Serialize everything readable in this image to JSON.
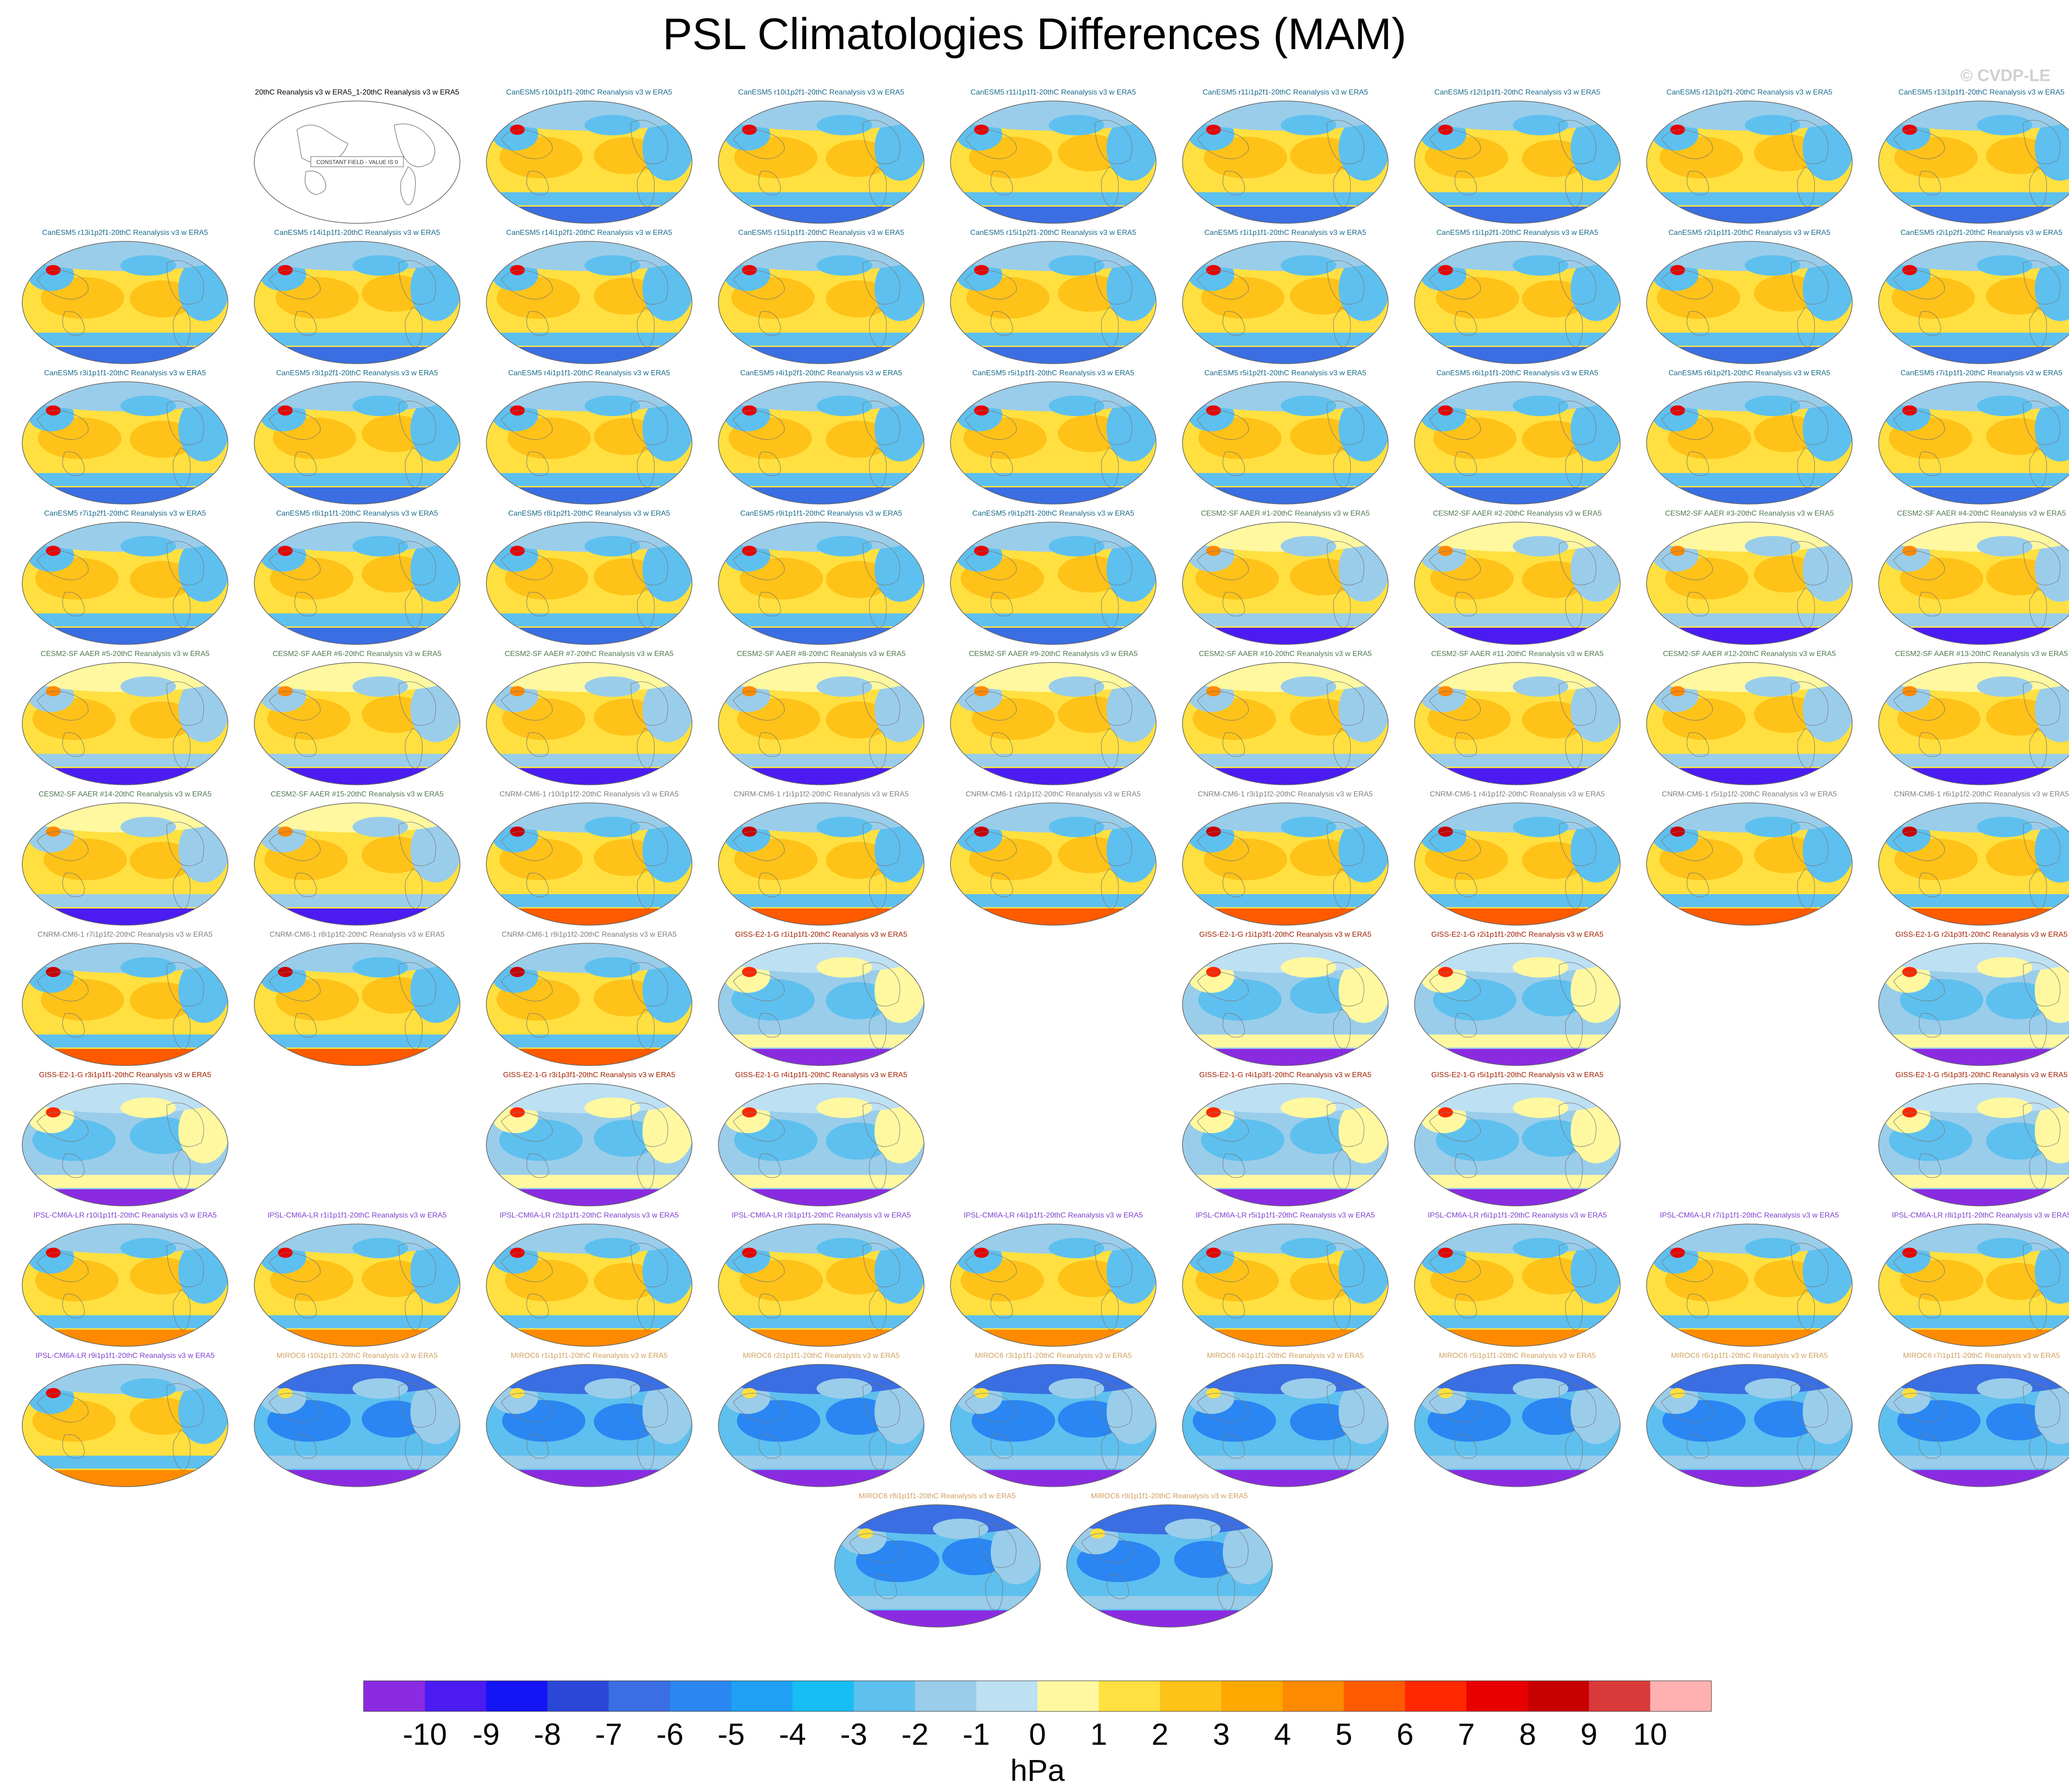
{
  "title": "PSL Climatologies Differences (MAM)",
  "watermark": "© CVDP-LE",
  "colorbar": {
    "units": "hPa",
    "tick_labels": [
      "-10",
      "-9",
      "-8",
      "-7",
      "-6",
      "-5",
      "-4",
      "-3",
      "-2",
      "-1",
      "0",
      "1",
      "2",
      "3",
      "4",
      "5",
      "6",
      "7",
      "8",
      "9",
      "10"
    ],
    "colors": [
      "#8a2be2",
      "#4b1bf2",
      "#1414f5",
      "#2b47d8",
      "#3a6ee2",
      "#2a86f2",
      "#1fa0f5",
      "#17bdf5",
      "#5ec0ef",
      "#9acdea",
      "#bde0f3",
      "#fff8a0",
      "#ffe040",
      "#ffc218",
      "#ffa800",
      "#ff8a00",
      "#ff5a00",
      "#ff2800",
      "#e80000",
      "#c80000",
      "#d83a3a",
      "#ffb0b0"
    ]
  },
  "ensemble_colors": {
    "reference": "#000000",
    "CanESM5": "#1a6b8c",
    "CESM2-SF AAER": "#4f7a4f",
    "CNRM-CM6-1": "#808080",
    "GISS-E2-1-G": "#a02000",
    "IPSL-CM6A-LR": "#8040d0",
    "MIROC6": "#d0a060"
  },
  "map_styles": {
    "reference": {
      "note": "CONSTANT FIELD - VALUE IS 0"
    },
    "CanESM5": {
      "bg": "#ffe040",
      "c1": "#ffc218",
      "c2": "#5ec0ef",
      "c3": "#9acdea",
      "south": "#3a6ee2",
      "hot": "#e80000"
    },
    "CESM2-SF AAER": {
      "bg": "#ffe040",
      "c1": "#ffc218",
      "c2": "#9acdea",
      "c3": "#fff8a0",
      "south": "#4b1bf2",
      "hot": "#ff8a00"
    },
    "CNRM-CM6-1": {
      "bg": "#ffe040",
      "c1": "#ffc218",
      "c2": "#5ec0ef",
      "c3": "#9acdea",
      "south": "#ff5a00",
      "hot": "#c80000"
    },
    "GISS-E2-1-G": {
      "bg": "#9acdea",
      "c1": "#5ec0ef",
      "c2": "#fff8a0",
      "c3": "#bde0f3",
      "south": "#8a2be2",
      "hot": "#ff2800"
    },
    "IPSL-CM6A-LR": {
      "bg": "#ffe040",
      "c1": "#ffc218",
      "c2": "#5ec0ef",
      "c3": "#9acdea",
      "south": "#ff8a00",
      "hot": "#e80000"
    },
    "MIROC6": {
      "bg": "#5ec0ef",
      "c1": "#2a86f2",
      "c2": "#9acdea",
      "c3": "#3a6ee2",
      "south": "#8a2be2",
      "hot": "#ffe040"
    }
  },
  "panels": [
    {
      "row": 0,
      "col": 1,
      "ens": "reference",
      "label": "20thC Reanalysis v3 w ERA5_1-20thC Reanalysis v3 w ERA5"
    },
    {
      "row": 0,
      "col": 2,
      "ens": "CanESM5",
      "label": "CanESM5 r10i1p1f1-20thC Reanalysis v3 w ERA5"
    },
    {
      "row": 0,
      "col": 3,
      "ens": "CanESM5",
      "label": "CanESM5 r10i1p2f1-20thC Reanalysis v3 w ERA5"
    },
    {
      "row": 0,
      "col": 4,
      "ens": "CanESM5",
      "label": "CanESM5 r11i1p1f1-20thC Reanalysis v3 w ERA5"
    },
    {
      "row": 0,
      "col": 5,
      "ens": "CanESM5",
      "label": "CanESM5 r11i1p2f1-20thC Reanalysis v3 w ERA5"
    },
    {
      "row": 0,
      "col": 6,
      "ens": "CanESM5",
      "label": "CanESM5 r12i1p1f1-20thC Reanalysis v3 w ERA5"
    },
    {
      "row": 0,
      "col": 7,
      "ens": "CanESM5",
      "label": "CanESM5 r12i1p2f1-20thC Reanalysis v3 w ERA5"
    },
    {
      "row": 0,
      "col": 8,
      "ens": "CanESM5",
      "label": "CanESM5 r13i1p1f1-20thC Reanalysis v3 w ERA5"
    },
    {
      "row": 1,
      "col": 0,
      "ens": "CanESM5",
      "label": "CanESM5 r13i1p2f1-20thC Reanalysis v3 w ERA5"
    },
    {
      "row": 1,
      "col": 1,
      "ens": "CanESM5",
      "label": "CanESM5 r14i1p1f1-20thC Reanalysis v3 w ERA5"
    },
    {
      "row": 1,
      "col": 2,
      "ens": "CanESM5",
      "label": "CanESM5 r14i1p2f1-20thC Reanalysis v3 w ERA5"
    },
    {
      "row": 1,
      "col": 3,
      "ens": "CanESM5",
      "label": "CanESM5 r15i1p1f1-20thC Reanalysis v3 w ERA5"
    },
    {
      "row": 1,
      "col": 4,
      "ens": "CanESM5",
      "label": "CanESM5 r15i1p2f1-20thC Reanalysis v3 w ERA5"
    },
    {
      "row": 1,
      "col": 5,
      "ens": "CanESM5",
      "label": "CanESM5 r1i1p1f1-20thC Reanalysis v3 w ERA5"
    },
    {
      "row": 1,
      "col": 6,
      "ens": "CanESM5",
      "label": "CanESM5 r1i1p2f1-20thC Reanalysis v3 w ERA5"
    },
    {
      "row": 1,
      "col": 7,
      "ens": "CanESM5",
      "label": "CanESM5 r2i1p1f1-20thC Reanalysis v3 w ERA5"
    },
    {
      "row": 1,
      "col": 8,
      "ens": "CanESM5",
      "label": "CanESM5 r2i1p2f1-20thC Reanalysis v3 w ERA5"
    },
    {
      "row": 2,
      "col": 0,
      "ens": "CanESM5",
      "label": "CanESM5 r3i1p1f1-20thC Reanalysis v3 w ERA5"
    },
    {
      "row": 2,
      "col": 1,
      "ens": "CanESM5",
      "label": "CanESM5 r3i1p2f1-20thC Reanalysis v3 w ERA5"
    },
    {
      "row": 2,
      "col": 2,
      "ens": "CanESM5",
      "label": "CanESM5 r4i1p1f1-20thC Reanalysis v3 w ERA5"
    },
    {
      "row": 2,
      "col": 3,
      "ens": "CanESM5",
      "label": "CanESM5 r4i1p2f1-20thC Reanalysis v3 w ERA5"
    },
    {
      "row": 2,
      "col": 4,
      "ens": "CanESM5",
      "label": "CanESM5 r5i1p1f1-20thC Reanalysis v3 w ERA5"
    },
    {
      "row": 2,
      "col": 5,
      "ens": "CanESM5",
      "label": "CanESM5 r5i1p2f1-20thC Reanalysis v3 w ERA5"
    },
    {
      "row": 2,
      "col": 6,
      "ens": "CanESM5",
      "label": "CanESM5 r6i1p1f1-20thC Reanalysis v3 w ERA5"
    },
    {
      "row": 2,
      "col": 7,
      "ens": "CanESM5",
      "label": "CanESM5 r6i1p2f1-20thC Reanalysis v3 w ERA5"
    },
    {
      "row": 2,
      "col": 8,
      "ens": "CanESM5",
      "label": "CanESM5 r7i1p1f1-20thC Reanalysis v3 w ERA5"
    },
    {
      "row": 3,
      "col": 0,
      "ens": "CanESM5",
      "label": "CanESM5 r7i1p2f1-20thC Reanalysis v3 w ERA5"
    },
    {
      "row": 3,
      "col": 1,
      "ens": "CanESM5",
      "label": "CanESM5 r8i1p1f1-20thC Reanalysis v3 w ERA5"
    },
    {
      "row": 3,
      "col": 2,
      "ens": "CanESM5",
      "label": "CanESM5 r8i1p2f1-20thC Reanalysis v3 w ERA5"
    },
    {
      "row": 3,
      "col": 3,
      "ens": "CanESM5",
      "label": "CanESM5 r9i1p1f1-20thC Reanalysis v3 w ERA5"
    },
    {
      "row": 3,
      "col": 4,
      "ens": "CanESM5",
      "label": "CanESM5 r9i1p2f1-20thC Reanalysis v3 w ERA5"
    },
    {
      "row": 3,
      "col": 5,
      "ens": "CESM2-SF AAER",
      "label": "CESM2-SF AAER #1-20thC Reanalysis v3 w ERA5"
    },
    {
      "row": 3,
      "col": 6,
      "ens": "CESM2-SF AAER",
      "label": "CESM2-SF AAER #2-20thC Reanalysis v3 w ERA5"
    },
    {
      "row": 3,
      "col": 7,
      "ens": "CESM2-SF AAER",
      "label": "CESM2-SF AAER #3-20thC Reanalysis v3 w ERA5"
    },
    {
      "row": 3,
      "col": 8,
      "ens": "CESM2-SF AAER",
      "label": "CESM2-SF AAER #4-20thC Reanalysis v3 w ERA5"
    },
    {
      "row": 4,
      "col": 0,
      "ens": "CESM2-SF AAER",
      "label": "CESM2-SF AAER #5-20thC Reanalysis v3 w ERA5"
    },
    {
      "row": 4,
      "col": 1,
      "ens": "CESM2-SF AAER",
      "label": "CESM2-SF AAER #6-20thC Reanalysis v3 w ERA5"
    },
    {
      "row": 4,
      "col": 2,
      "ens": "CESM2-SF AAER",
      "label": "CESM2-SF AAER #7-20thC Reanalysis v3 w ERA5"
    },
    {
      "row": 4,
      "col": 3,
      "ens": "CESM2-SF AAER",
      "label": "CESM2-SF AAER #8-20thC Reanalysis v3 w ERA5"
    },
    {
      "row": 4,
      "col": 4,
      "ens": "CESM2-SF AAER",
      "label": "CESM2-SF AAER #9-20thC Reanalysis v3 w ERA5"
    },
    {
      "row": 4,
      "col": 5,
      "ens": "CESM2-SF AAER",
      "label": "CESM2-SF AAER #10-20thC Reanalysis v3 w ERA5"
    },
    {
      "row": 4,
      "col": 6,
      "ens": "CESM2-SF AAER",
      "label": "CESM2-SF AAER #11-20thC Reanalysis v3 w ERA5"
    },
    {
      "row": 4,
      "col": 7,
      "ens": "CESM2-SF AAER",
      "label": "CESM2-SF AAER #12-20thC Reanalysis v3 w ERA5"
    },
    {
      "row": 4,
      "col": 8,
      "ens": "CESM2-SF AAER",
      "label": "CESM2-SF AAER #13-20thC Reanalysis v3 w ERA5"
    },
    {
      "row": 5,
      "col": 0,
      "ens": "CESM2-SF AAER",
      "label": "CESM2-SF AAER #14-20thC Reanalysis v3 w ERA5"
    },
    {
      "row": 5,
      "col": 1,
      "ens": "CESM2-SF AAER",
      "label": "CESM2-SF AAER #15-20thC Reanalysis v3 w ERA5"
    },
    {
      "row": 5,
      "col": 2,
      "ens": "CNRM-CM6-1",
      "label": "CNRM-CM6-1 r10i1p1f2-20thC Reanalysis v3 w ERA5"
    },
    {
      "row": 5,
      "col": 3,
      "ens": "CNRM-CM6-1",
      "label": "CNRM-CM6-1 r1i1p1f2-20thC Reanalysis v3 w ERA5"
    },
    {
      "row": 5,
      "col": 4,
      "ens": "CNRM-CM6-1",
      "label": "CNRM-CM6-1 r2i1p1f2-20thC Reanalysis v3 w ERA5"
    },
    {
      "row": 5,
      "col": 5,
      "ens": "CNRM-CM6-1",
      "label": "CNRM-CM6-1 r3i1p1f2-20thC Reanalysis v3 w ERA5"
    },
    {
      "row": 5,
      "col": 6,
      "ens": "CNRM-CM6-1",
      "label": "CNRM-CM6-1 r4i1p1f2-20thC Reanalysis v3 w ERA5"
    },
    {
      "row": 5,
      "col": 7,
      "ens": "CNRM-CM6-1",
      "label": "CNRM-CM6-1 r5i1p1f2-20thC Reanalysis v3 w ERA5"
    },
    {
      "row": 5,
      "col": 8,
      "ens": "CNRM-CM6-1",
      "label": "CNRM-CM6-1 r6i1p1f2-20thC Reanalysis v3 w ERA5"
    },
    {
      "row": 6,
      "col": 0,
      "ens": "CNRM-CM6-1",
      "label": "CNRM-CM6-1 r7i1p1f2-20thC Reanalysis v3 w ERA5"
    },
    {
      "row": 6,
      "col": 1,
      "ens": "CNRM-CM6-1",
      "label": "CNRM-CM6-1 r8i1p1f2-20thC Reanalysis v3 w ERA5"
    },
    {
      "row": 6,
      "col": 2,
      "ens": "CNRM-CM6-1",
      "label": "CNRM-CM6-1 r9i1p1f2-20thC Reanalysis v3 w ERA5"
    },
    {
      "row": 6,
      "col": 3,
      "ens": "GISS-E2-1-G",
      "label": "GISS-E2-1-G r1i1p1f1-20thC Reanalysis v3 w ERA5"
    },
    {
      "row": 6,
      "col": 5,
      "ens": "GISS-E2-1-G",
      "label": "GISS-E2-1-G r1i1p3f1-20thC Reanalysis v3 w ERA5"
    },
    {
      "row": 6,
      "col": 6,
      "ens": "GISS-E2-1-G",
      "label": "GISS-E2-1-G r2i1p1f1-20thC Reanalysis v3 w ERA5"
    },
    {
      "row": 6,
      "col": 8,
      "ens": "GISS-E2-1-G",
      "label": "GISS-E2-1-G r2i1p3f1-20thC Reanalysis v3 w ERA5"
    },
    {
      "row": 7,
      "col": 0,
      "ens": "GISS-E2-1-G",
      "label": "GISS-E2-1-G r3i1p1f1-20thC Reanalysis v3 w ERA5"
    },
    {
      "row": 7,
      "col": 2,
      "ens": "GISS-E2-1-G",
      "label": "GISS-E2-1-G r3i1p3f1-20thC Reanalysis v3 w ERA5"
    },
    {
      "row": 7,
      "col": 3,
      "ens": "GISS-E2-1-G",
      "label": "GISS-E2-1-G r4i1p1f1-20thC Reanalysis v3 w ERA5"
    },
    {
      "row": 7,
      "col": 5,
      "ens": "GISS-E2-1-G",
      "label": "GISS-E2-1-G r4i1p3f1-20thC Reanalysis v3 w ERA5"
    },
    {
      "row": 7,
      "col": 6,
      "ens": "GISS-E2-1-G",
      "label": "GISS-E2-1-G r5i1p1f1-20thC Reanalysis v3 w ERA5"
    },
    {
      "row": 7,
      "col": 8,
      "ens": "GISS-E2-1-G",
      "label": "GISS-E2-1-G r5i1p3f1-20thC Reanalysis v3 w ERA5"
    },
    {
      "row": 8,
      "col": 0,
      "ens": "IPSL-CM6A-LR",
      "label": "IPSL-CM6A-LR r10i1p1f1-20thC Reanalysis v3 w ERA5"
    },
    {
      "row": 8,
      "col": 1,
      "ens": "IPSL-CM6A-LR",
      "label": "IPSL-CM6A-LR r1i1p1f1-20thC Reanalysis v3 w ERA5"
    },
    {
      "row": 8,
      "col": 2,
      "ens": "IPSL-CM6A-LR",
      "label": "IPSL-CM6A-LR r2i1p1f1-20thC Reanalysis v3 w ERA5"
    },
    {
      "row": 8,
      "col": 3,
      "ens": "IPSL-CM6A-LR",
      "label": "IPSL-CM6A-LR r3i1p1f1-20thC Reanalysis v3 w ERA5"
    },
    {
      "row": 8,
      "col": 4,
      "ens": "IPSL-CM6A-LR",
      "label": "IPSL-CM6A-LR r4i1p1f1-20thC Reanalysis v3 w ERA5"
    },
    {
      "row": 8,
      "col": 5,
      "ens": "IPSL-CM6A-LR",
      "label": "IPSL-CM6A-LR r5i1p1f1-20thC Reanalysis v3 w ERA5"
    },
    {
      "row": 8,
      "col": 6,
      "ens": "IPSL-CM6A-LR",
      "label": "IPSL-CM6A-LR r6i1p1f1-20thC Reanalysis v3 w ERA5"
    },
    {
      "row": 8,
      "col": 7,
      "ens": "IPSL-CM6A-LR",
      "label": "IPSL-CM6A-LR r7i1p1f1-20thC Reanalysis v3 w ERA5"
    },
    {
      "row": 8,
      "col": 8,
      "ens": "IPSL-CM6A-LR",
      "label": "IPSL-CM6A-LR r8i1p1f1-20thC Reanalysis v3 w ERA5"
    },
    {
      "row": 9,
      "col": 0,
      "ens": "IPSL-CM6A-LR",
      "label": "IPSL-CM6A-LR r9i1p1f1-20thC Reanalysis v3 w ERA5"
    },
    {
      "row": 9,
      "col": 1,
      "ens": "MIROC6",
      "label": "MIROC6 r10i1p1f1-20thC Reanalysis v3 w ERA5"
    },
    {
      "row": 9,
      "col": 2,
      "ens": "MIROC6",
      "label": "MIROC6 r1i1p1f1-20thC Reanalysis v3 w ERA5"
    },
    {
      "row": 9,
      "col": 3,
      "ens": "MIROC6",
      "label": "MIROC6 r2i1p1f1-20thC Reanalysis v3 w ERA5"
    },
    {
      "row": 9,
      "col": 4,
      "ens": "MIROC6",
      "label": "MIROC6 r3i1p1f1-20thC Reanalysis v3 w ERA5"
    },
    {
      "row": 9,
      "col": 5,
      "ens": "MIROC6",
      "label": "MIROC6 r4i1p1f1-20thC Reanalysis v3 w ERA5"
    },
    {
      "row": 9,
      "col": 6,
      "ens": "MIROC6",
      "label": "MIROC6 r5i1p1f1-20thC Reanalysis v3 w ERA5"
    },
    {
      "row": 9,
      "col": 7,
      "ens": "MIROC6",
      "label": "MIROC6 r6i1p1f1-20thC Reanalysis v3 w ERA5"
    },
    {
      "row": 9,
      "col": 8,
      "ens": "MIROC6",
      "label": "MIROC6 r7i1p1f1-20thC Reanalysis v3 w ERA5"
    },
    {
      "row": 10,
      "col": 3.5,
      "ens": "MIROC6",
      "label": "MIROC6 r8i1p1f1-20thC Reanalysis v3 w ERA5"
    },
    {
      "row": 10,
      "col": 4.5,
      "ens": "MIROC6",
      "label": "MIROC6 r9i1p1f1-20thC Reanalysis v3 w ERA5"
    }
  ]
}
